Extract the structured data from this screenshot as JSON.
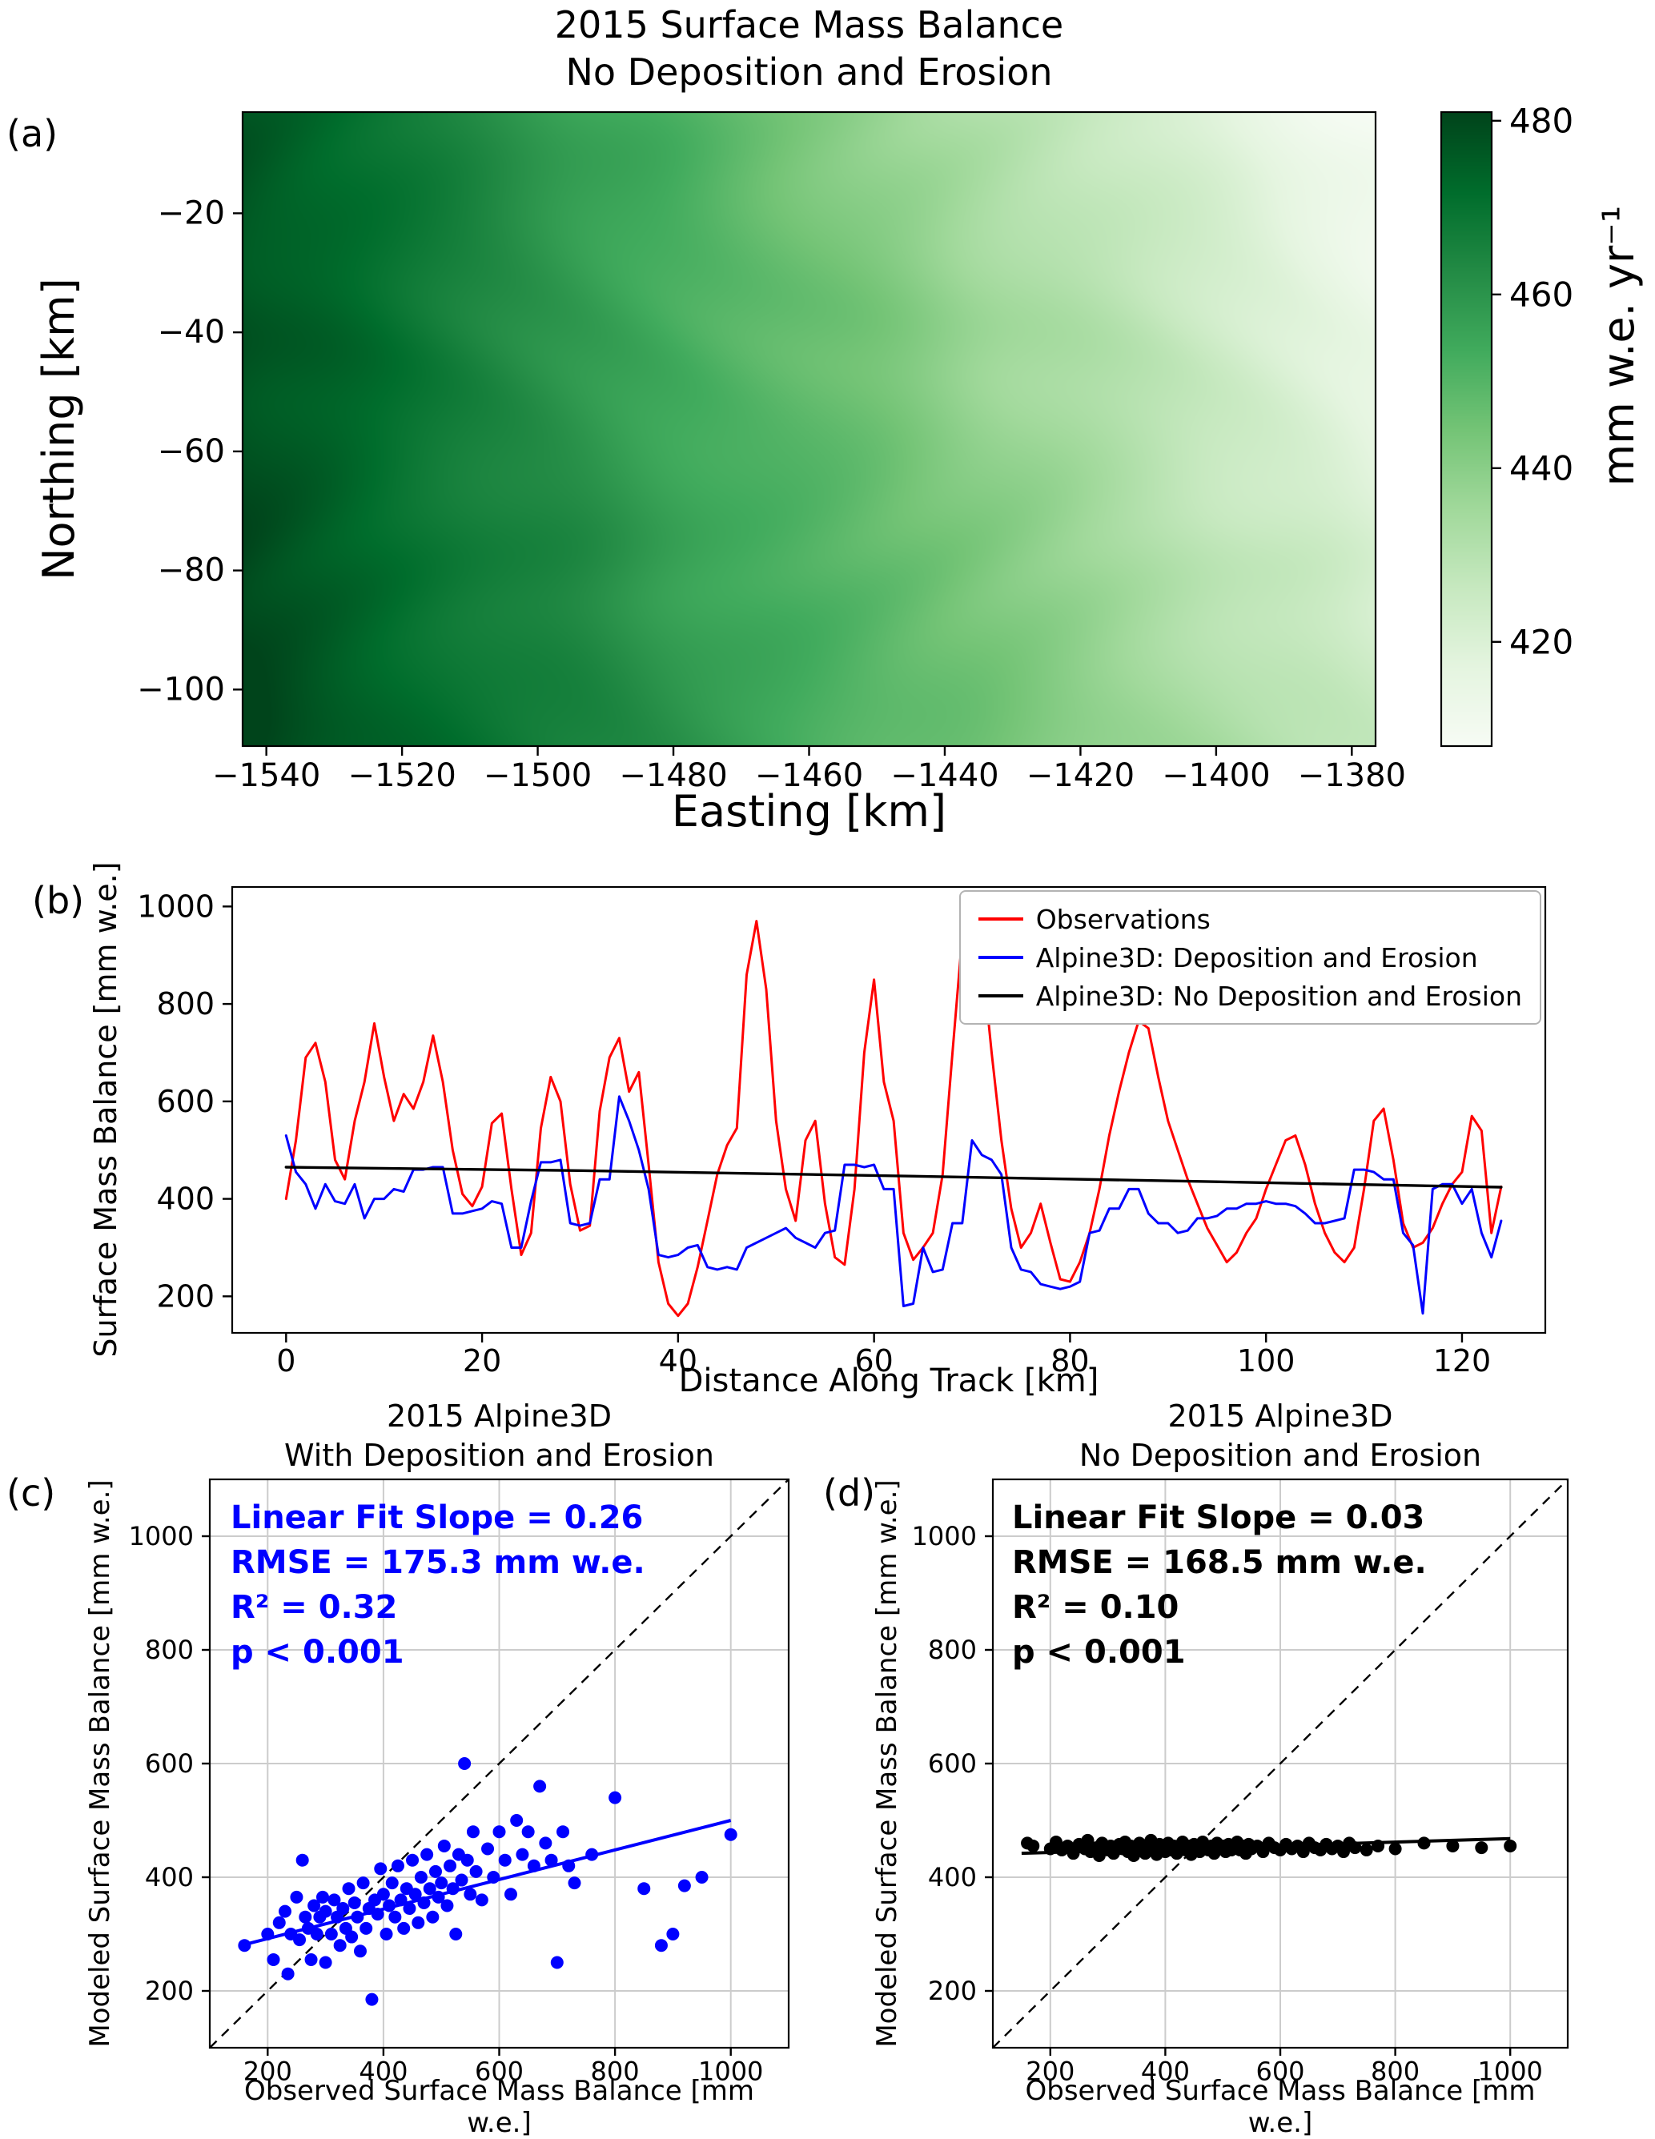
{
  "figure": {
    "panel_labels": {
      "a": "(a)",
      "b": "(b)",
      "c": "(c)",
      "d": "(d)"
    }
  },
  "chart_data": [
    {
      "panel": "a",
      "type": "heatmap",
      "title_lines": [
        "2015 Surface Mass Balance",
        "No Deposition and Erosion"
      ],
      "xlabel": "Easting [km]",
      "ylabel": "Northing [km]",
      "xlim": [
        -1543.5,
        -1376.5
      ],
      "ylim": [
        -109.5,
        -3
      ],
      "xticks": [
        -1540,
        -1520,
        -1500,
        -1480,
        -1460,
        -1440,
        -1420,
        -1400,
        -1380
      ],
      "yticks": [
        -20,
        -40,
        -60,
        -80,
        -100
      ],
      "colormap": "Greens",
      "corner_values": {
        "top_left": 477,
        "top_right": 409,
        "bottom_left": 481,
        "bottom_right": 426
      },
      "colorbar": {
        "label": "mm w.e. yr⁻¹",
        "ticks": [
          480,
          460,
          440,
          420
        ],
        "vmin": 408,
        "vmax": 481
      }
    },
    {
      "panel": "b",
      "type": "line",
      "xlabel": "Distance Along Track [km]",
      "ylabel": "Surface Mass Balance [mm w.e.]",
      "xlim": [
        -5.5,
        128.5
      ],
      "ylim": [
        125,
        1040
      ],
      "xticks": [
        0,
        20,
        40,
        60,
        80,
        100,
        120
      ],
      "yticks": [
        200,
        400,
        600,
        800,
        1000
      ],
      "legend_position": "upper right",
      "series": [
        {
          "name": "Observations",
          "color": "#ff0000",
          "x0": 0,
          "dx": 1,
          "y": [
            400,
            520,
            690,
            720,
            640,
            480,
            440,
            560,
            640,
            760,
            650,
            560,
            615,
            585,
            640,
            735,
            640,
            500,
            410,
            385,
            425,
            555,
            575,
            420,
            285,
            330,
            545,
            650,
            600,
            430,
            335,
            345,
            580,
            690,
            730,
            620,
            660,
            470,
            270,
            185,
            160,
            185,
            260,
            355,
            450,
            510,
            545,
            860,
            970,
            830,
            560,
            420,
            355,
            520,
            560,
            390,
            280,
            265,
            420,
            700,
            850,
            640,
            560,
            330,
            275,
            300,
            330,
            450,
            700,
            940,
            1000,
            900,
            700,
            520,
            380,
            300,
            330,
            390,
            310,
            235,
            230,
            270,
            330,
            420,
            530,
            620,
            700,
            765,
            750,
            650,
            560,
            500,
            440,
            390,
            340,
            305,
            270,
            290,
            330,
            360,
            420,
            470,
            520,
            530,
            470,
            390,
            330,
            290,
            270,
            300,
            420,
            560,
            585,
            480,
            350,
            300,
            310,
            340,
            390,
            430,
            455,
            570,
            540,
            330,
            425
          ]
        },
        {
          "name": "Alpine3D: Deposition and Erosion",
          "color": "#0000ff",
          "x0": 0,
          "dx": 1,
          "y": [
            530,
            455,
            430,
            380,
            430,
            395,
            390,
            430,
            360,
            400,
            400,
            420,
            415,
            460,
            460,
            465,
            465,
            370,
            370,
            375,
            380,
            395,
            390,
            300,
            300,
            395,
            475,
            475,
            480,
            350,
            345,
            350,
            440,
            440,
            610,
            560,
            500,
            420,
            285,
            280,
            285,
            300,
            305,
            260,
            255,
            260,
            255,
            300,
            310,
            320,
            330,
            340,
            320,
            310,
            300,
            330,
            335,
            470,
            470,
            465,
            470,
            420,
            420,
            180,
            185,
            300,
            250,
            255,
            350,
            350,
            520,
            490,
            480,
            450,
            300,
            255,
            250,
            225,
            220,
            215,
            220,
            230,
            330,
            335,
            380,
            380,
            420,
            420,
            370,
            350,
            350,
            330,
            335,
            360,
            360,
            365,
            380,
            380,
            390,
            390,
            395,
            390,
            390,
            385,
            370,
            350,
            350,
            355,
            360,
            460,
            460,
            455,
            440,
            440,
            330,
            305,
            165,
            420,
            430,
            430,
            390,
            420,
            330,
            280,
            355
          ]
        },
        {
          "name": "Alpine3D: No Deposition and Erosion",
          "color": "#000000",
          "points": [
            [
              0,
              465
            ],
            [
              30,
              458
            ],
            [
              60,
              448
            ],
            [
              90,
              437
            ],
            [
              124,
              424
            ]
          ]
        }
      ]
    },
    {
      "panel": "c",
      "type": "scatter",
      "title_lines": [
        "2015 Alpine3D",
        "With Deposition and Erosion"
      ],
      "xlabel": "Observed Surface Mass Balance [mm w.e.]",
      "ylabel": "Modeled Surface Mass Balance [mm w.e.]",
      "xlim": [
        100,
        1100
      ],
      "ylim": [
        100,
        1100
      ],
      "xticks": [
        200,
        400,
        600,
        800,
        1000
      ],
      "yticks": [
        200,
        400,
        600,
        800,
        1000
      ],
      "color": "#0000ff",
      "stats": [
        "Linear Fit Slope = 0.26",
        "RMSE = 175.3 mm w.e.",
        "R² = 0.32",
        "p < 0.001"
      ],
      "fit_line": {
        "x": [
          150,
          1000
        ],
        "y": [
          279,
          500
        ]
      },
      "identity_line": true,
      "points": [
        [
          160,
          280
        ],
        [
          200,
          300
        ],
        [
          210,
          255
        ],
        [
          220,
          320
        ],
        [
          230,
          340
        ],
        [
          235,
          230
        ],
        [
          240,
          300
        ],
        [
          250,
          365
        ],
        [
          255,
          290
        ],
        [
          260,
          430
        ],
        [
          265,
          330
        ],
        [
          270,
          310
        ],
        [
          275,
          255
        ],
        [
          280,
          350
        ],
        [
          285,
          300
        ],
        [
          290,
          330
        ],
        [
          295,
          365
        ],
        [
          300,
          340
        ],
        [
          300,
          250
        ],
        [
          310,
          300
        ],
        [
          315,
          360
        ],
        [
          320,
          330
        ],
        [
          325,
          280
        ],
        [
          330,
          345
        ],
        [
          335,
          310
        ],
        [
          340,
          380
        ],
        [
          345,
          295
        ],
        [
          350,
          355
        ],
        [
          355,
          330
        ],
        [
          360,
          270
        ],
        [
          365,
          390
        ],
        [
          370,
          310
        ],
        [
          375,
          345
        ],
        [
          380,
          185
        ],
        [
          385,
          360
        ],
        [
          390,
          335
        ],
        [
          395,
          415
        ],
        [
          400,
          370
        ],
        [
          405,
          300
        ],
        [
          410,
          350
        ],
        [
          415,
          390
        ],
        [
          420,
          330
        ],
        [
          425,
          420
        ],
        [
          430,
          360
        ],
        [
          435,
          310
        ],
        [
          440,
          380
        ],
        [
          445,
          345
        ],
        [
          450,
          430
        ],
        [
          455,
          370
        ],
        [
          460,
          320
        ],
        [
          465,
          400
        ],
        [
          470,
          355
        ],
        [
          475,
          440
        ],
        [
          480,
          380
        ],
        [
          485,
          330
        ],
        [
          490,
          410
        ],
        [
          495,
          365
        ],
        [
          500,
          390
        ],
        [
          505,
          455
        ],
        [
          510,
          350
        ],
        [
          515,
          420
        ],
        [
          520,
          380
        ],
        [
          525,
          300
        ],
        [
          530,
          440
        ],
        [
          535,
          395
        ],
        [
          540,
          600
        ],
        [
          545,
          430
        ],
        [
          550,
          370
        ],
        [
          555,
          480
        ],
        [
          560,
          410
        ],
        [
          570,
          360
        ],
        [
          580,
          450
        ],
        [
          590,
          400
        ],
        [
          600,
          480
        ],
        [
          610,
          430
        ],
        [
          620,
          370
        ],
        [
          630,
          500
        ],
        [
          640,
          440
        ],
        [
          650,
          480
        ],
        [
          660,
          420
        ],
        [
          670,
          560
        ],
        [
          680,
          460
        ],
        [
          690,
          430
        ],
        [
          700,
          250
        ],
        [
          710,
          480
        ],
        [
          720,
          420
        ],
        [
          730,
          390
        ],
        [
          760,
          440
        ],
        [
          800,
          540
        ],
        [
          850,
          380
        ],
        [
          880,
          280
        ],
        [
          900,
          300
        ],
        [
          920,
          385
        ],
        [
          950,
          400
        ],
        [
          1000,
          475
        ]
      ]
    },
    {
      "panel": "d",
      "type": "scatter",
      "title_lines": [
        "2015 Alpine3D",
        "No Deposition and Erosion"
      ],
      "xlabel": "Observed Surface Mass Balance [mm w.e.]",
      "ylabel": "Modeled Surface Mass Balance [mm w.e.]",
      "xlim": [
        100,
        1100
      ],
      "ylim": [
        100,
        1100
      ],
      "xticks": [
        200,
        400,
        600,
        800,
        1000
      ],
      "yticks": [
        200,
        400,
        600,
        800,
        1000
      ],
      "color": "#000000",
      "stats": [
        "Linear Fit Slope = 0.03",
        "RMSE = 168.5 mm w.e.",
        "R² = 0.10",
        "p < 0.001"
      ],
      "fit_line": {
        "x": [
          150,
          1000
        ],
        "y": [
          442,
          468
        ]
      },
      "identity_line": true,
      "points": [
        [
          160,
          460
        ],
        [
          170,
          455
        ],
        [
          200,
          450
        ],
        [
          210,
          462
        ],
        [
          220,
          448
        ],
        [
          230,
          455
        ],
        [
          240,
          442
        ],
        [
          250,
          458
        ],
        [
          260,
          450
        ],
        [
          265,
          465
        ],
        [
          270,
          445
        ],
        [
          280,
          452
        ],
        [
          285,
          438
        ],
        [
          290,
          460
        ],
        [
          300,
          448
        ],
        [
          305,
          455
        ],
        [
          310,
          442
        ],
        [
          320,
          458
        ],
        [
          325,
          450
        ],
        [
          330,
          462
        ],
        [
          335,
          445
        ],
        [
          340,
          455
        ],
        [
          345,
          438
        ],
        [
          350,
          452
        ],
        [
          355,
          460
        ],
        [
          360,
          448
        ],
        [
          365,
          442
        ],
        [
          370,
          455
        ],
        [
          375,
          465
        ],
        [
          380,
          450
        ],
        [
          385,
          440
        ],
        [
          390,
          458
        ],
        [
          395,
          452
        ],
        [
          400,
          445
        ],
        [
          405,
          460
        ],
        [
          410,
          448
        ],
        [
          415,
          455
        ],
        [
          420,
          442
        ],
        [
          425,
          452
        ],
        [
          430,
          462
        ],
        [
          435,
          448
        ],
        [
          440,
          455
        ],
        [
          445,
          440
        ],
        [
          450,
          458
        ],
        [
          455,
          450
        ],
        [
          460,
          445
        ],
        [
          465,
          462
        ],
        [
          470,
          452
        ],
        [
          475,
          448
        ],
        [
          480,
          455
        ],
        [
          485,
          442
        ],
        [
          490,
          460
        ],
        [
          495,
          450
        ],
        [
          500,
          455
        ],
        [
          505,
          445
        ],
        [
          510,
          458
        ],
        [
          515,
          448
        ],
        [
          520,
          452
        ],
        [
          525,
          462
        ],
        [
          530,
          448
        ],
        [
          535,
          455
        ],
        [
          540,
          442
        ],
        [
          545,
          458
        ],
        [
          550,
          450
        ],
        [
          560,
          455
        ],
        [
          570,
          445
        ],
        [
          580,
          460
        ],
        [
          590,
          452
        ],
        [
          600,
          448
        ],
        [
          610,
          458
        ],
        [
          620,
          450
        ],
        [
          630,
          455
        ],
        [
          640,
          445
        ],
        [
          650,
          460
        ],
        [
          660,
          452
        ],
        [
          670,
          448
        ],
        [
          680,
          458
        ],
        [
          690,
          450
        ],
        [
          700,
          455
        ],
        [
          710,
          445
        ],
        [
          720,
          460
        ],
        [
          730,
          452
        ],
        [
          750,
          448
        ],
        [
          770,
          455
        ],
        [
          800,
          450
        ],
        [
          850,
          460
        ],
        [
          900,
          455
        ],
        [
          950,
          452
        ],
        [
          1000,
          455
        ]
      ]
    }
  ]
}
